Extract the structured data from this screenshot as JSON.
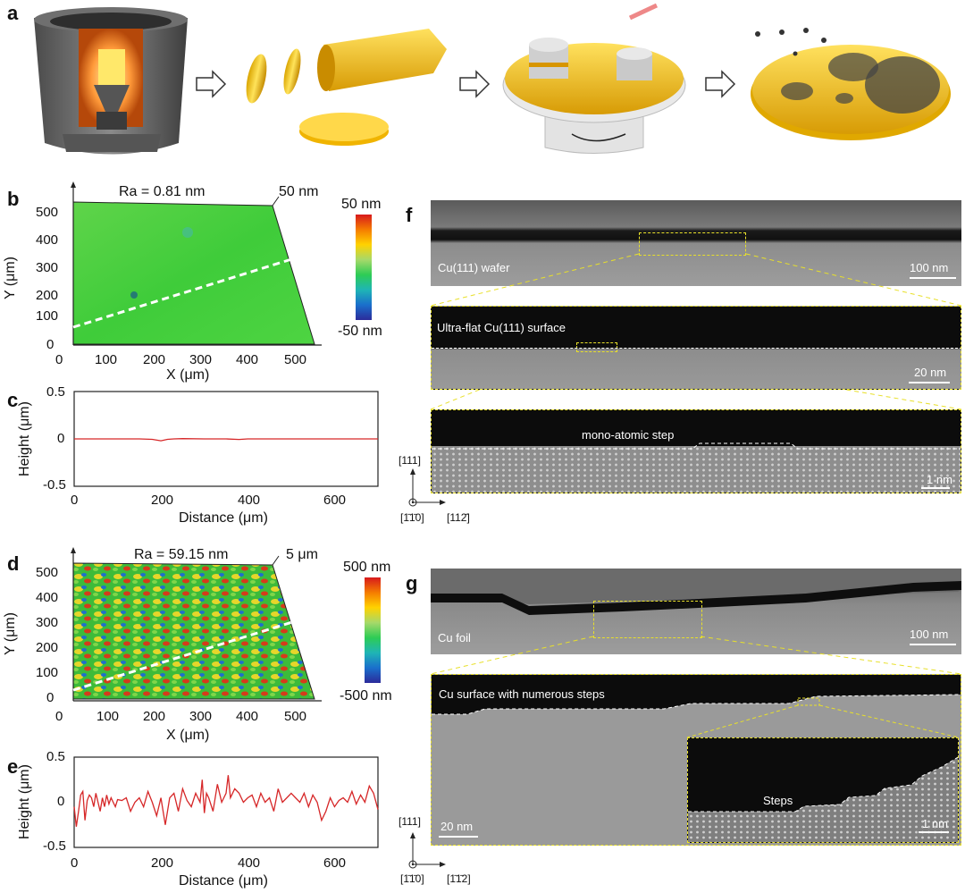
{
  "panel_a": {
    "label": "a",
    "arrows": [
      "arrow",
      "arrow",
      "arrow"
    ]
  },
  "panel_b": {
    "label": "b",
    "ra": "Ra = 0.81 nm",
    "z_scale": "50 nm",
    "cbar_top": "50 nm",
    "cbar_bottom": "-50 nm",
    "xlabel": "X (μm)",
    "ylabel": "Y (μm)",
    "xticks": [
      "0",
      "100",
      "200",
      "300",
      "400",
      "500"
    ],
    "yticks": [
      "500",
      "400",
      "300",
      "200",
      "100",
      "0"
    ]
  },
  "panel_c": {
    "label": "c",
    "xlabel": "Distance (μm)",
    "ylabel": "Height (μm)",
    "xticks": [
      "0",
      "200",
      "400",
      "600"
    ],
    "yticks": [
      "0.5",
      "0",
      "-0.5"
    ]
  },
  "panel_d": {
    "label": "d",
    "ra": "Ra = 59.15 nm",
    "z_scale": "5 μm",
    "cbar_top": "500 nm",
    "cbar_bottom": "-500 nm",
    "xlabel": "X (μm)",
    "ylabel": "Y (μm)",
    "xticks": [
      "0",
      "100",
      "200",
      "300",
      "400",
      "500"
    ],
    "yticks": [
      "500",
      "400",
      "300",
      "200",
      "100",
      "0"
    ]
  },
  "panel_e": {
    "label": "e",
    "xlabel": "Distance (μm)",
    "ylabel": "Height (μm)",
    "xticks": [
      "0",
      "200",
      "400",
      "600"
    ],
    "yticks": [
      "0.5",
      "0",
      "-0.5"
    ]
  },
  "panel_f": {
    "label": "f",
    "top_caption": "Cu(111) wafer",
    "top_scale": "100 nm",
    "mid_caption": "Ultra-flat Cu(111) surface",
    "mid_scale": "20 nm",
    "bot_caption": "mono-atomic step",
    "bot_scale": "1 nm",
    "dir_up": "[111]",
    "dir_out": "[1̄1̄0]",
    "dir_right": "[112̄]"
  },
  "panel_g": {
    "label": "g",
    "top_caption": "Cu foil",
    "top_scale": "100 nm",
    "mid_caption": "Cu surface with numerous steps",
    "mid_scale": "20 nm",
    "inset_caption": "Steps",
    "inset_scale": "1 nm",
    "dir_up": "[111]",
    "dir_out": "[1̄1̄0]",
    "dir_right": "[1̄1̄2]"
  },
  "chart_data": [
    {
      "type": "line",
      "panel": "c",
      "xlabel": "Distance (μm)",
      "ylabel": "Height (μm)",
      "xlim": [
        0,
        700
      ],
      "ylim": [
        -0.5,
        0.5
      ],
      "series": [
        {
          "color": "#d62728",
          "x": [
            0,
            50,
            100,
            150,
            180,
            200,
            215,
            230,
            250,
            300,
            350,
            380,
            400,
            450,
            500,
            550,
            600,
            650,
            700
          ],
          "y": [
            0,
            0,
            0,
            0,
            -0.005,
            -0.02,
            -0.005,
            0,
            0.003,
            0,
            0,
            -0.006,
            0,
            0,
            0,
            0,
            0,
            0,
            0
          ]
        }
      ]
    },
    {
      "type": "line",
      "panel": "e",
      "xlabel": "Distance (μm)",
      "ylabel": "Height (μm)",
      "xlim": [
        0,
        700
      ],
      "ylim": [
        -0.5,
        0.5
      ],
      "series": [
        {
          "color": "#d62728",
          "x": [
            0,
            5,
            10,
            15,
            20,
            25,
            30,
            35,
            40,
            45,
            50,
            55,
            60,
            65,
            70,
            75,
            80,
            85,
            90,
            95,
            100,
            110,
            120,
            130,
            140,
            150,
            160,
            170,
            180,
            190,
            200,
            210,
            220,
            230,
            240,
            250,
            260,
            270,
            280,
            290,
            295,
            300,
            305,
            310,
            320,
            330,
            340,
            350,
            355,
            360,
            370,
            380,
            390,
            400,
            410,
            420,
            430,
            440,
            450,
            460,
            470,
            480,
            490,
            500,
            510,
            520,
            530,
            540,
            550,
            560,
            570,
            580,
            590,
            600,
            610,
            620,
            630,
            640,
            650,
            660,
            670,
            680,
            690,
            700
          ],
          "y": [
            -0.05,
            -0.27,
            -0.1,
            0.08,
            0.12,
            -0.2,
            0.02,
            0.08,
            0.05,
            -0.05,
            0.1,
            0.0,
            -0.1,
            0.05,
            -0.05,
            0.08,
            -0.02,
            0.05,
            0.0,
            -0.05,
            0.03,
            0.02,
            0.05,
            -0.1,
            0.0,
            0.05,
            -0.05,
            0.12,
            0.0,
            -0.15,
            0.05,
            -0.25,
            0.05,
            0.1,
            -0.1,
            0.15,
            0.02,
            -0.05,
            0.1,
            0.0,
            0.25,
            -0.12,
            0.1,
            0.05,
            -0.1,
            0.2,
            0.0,
            0.1,
            0.3,
            0.05,
            0.15,
            0.1,
            0.0,
            0.05,
            0.08,
            -0.05,
            0.1,
            0.0,
            0.05,
            -0.1,
            0.15,
            0.0,
            0.05,
            0.1,
            0.05,
            0.0,
            0.1,
            -0.05,
            0.08,
            0.0,
            -0.2,
            -0.1,
            0.05,
            -0.05,
            0.02,
            0.05,
            0.0,
            0.12,
            -0.02,
            0.08,
            0.0,
            0.18,
            0.1,
            -0.08
          ]
        }
      ]
    }
  ]
}
